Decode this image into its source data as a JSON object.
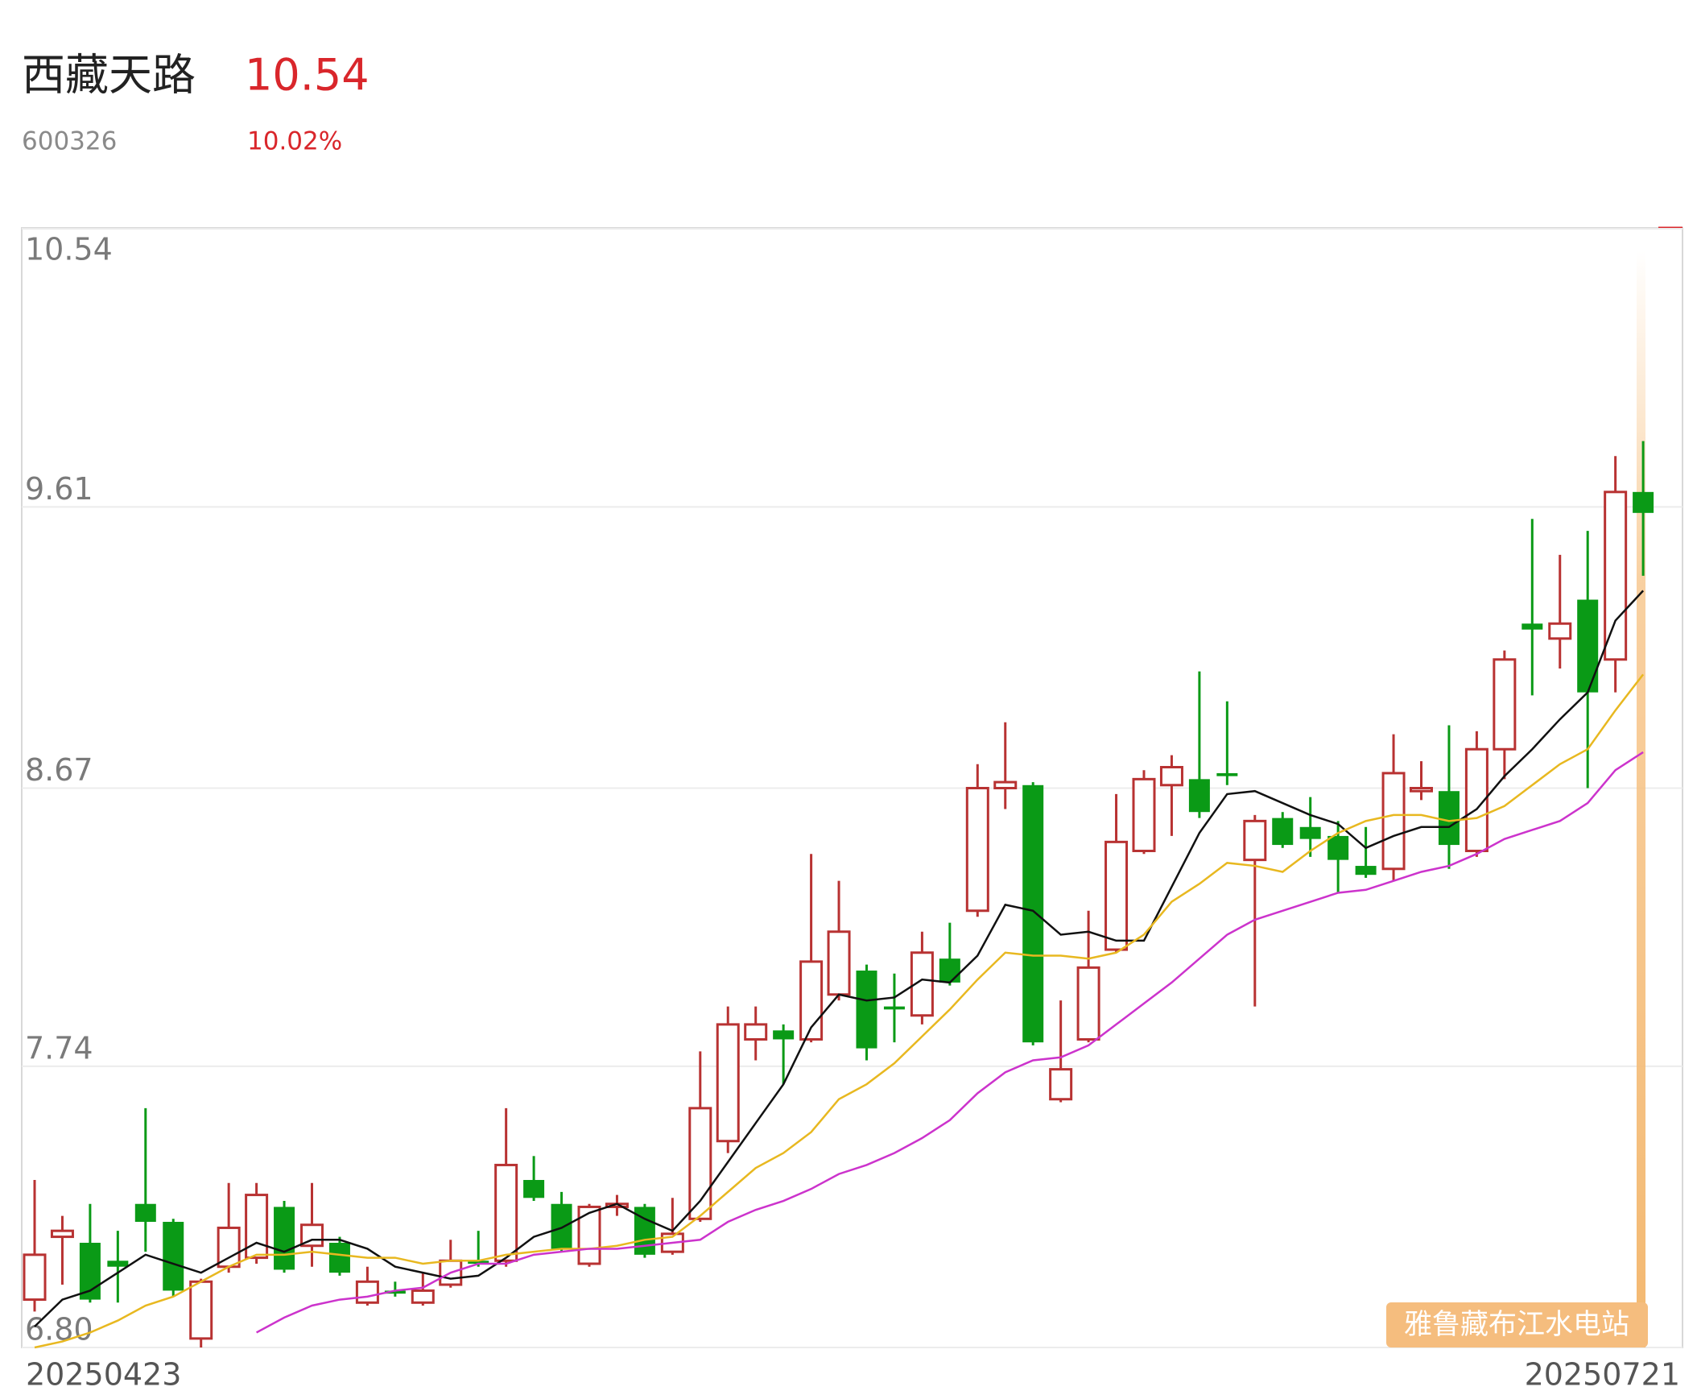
{
  "header": {
    "name": "西藏天路",
    "price": "10.54",
    "code": "600326",
    "change": "10.02%"
  },
  "chart_data": {
    "type": "candlestick",
    "categories": [
      "20250423",
      null,
      null,
      null,
      null,
      null,
      null,
      null,
      null,
      null,
      null,
      null,
      null,
      null,
      null,
      null,
      null,
      null,
      null,
      null,
      null,
      null,
      null,
      null,
      null,
      null,
      null,
      null,
      null,
      null,
      null,
      null,
      null,
      null,
      null,
      null,
      null,
      null,
      null,
      null,
      null,
      null,
      null,
      null,
      null,
      null,
      null,
      null,
      null,
      null,
      null,
      null,
      null,
      null,
      null,
      null,
      null,
      null,
      "20250721"
    ],
    "open": [
      6.96,
      7.17,
      7.15,
      7.09,
      7.28,
      7.22,
      6.83,
      7.07,
      7.1,
      7.27,
      7.14,
      7.15,
      6.95,
      6.99,
      6.95,
      7.01,
      7.09,
      7.09,
      7.36,
      7.28,
      7.08,
      7.27,
      7.27,
      7.12,
      7.23,
      7.49,
      7.83,
      7.86,
      7.83,
      7.98,
      8.06,
      7.94,
      7.91,
      8.1,
      8.26,
      8.67,
      8.68,
      7.63,
      7.83,
      8.13,
      8.46,
      8.68,
      8.7,
      8.72,
      8.43,
      8.57,
      8.54,
      8.51,
      8.41,
      8.4,
      8.66,
      8.66,
      8.46,
      8.8,
      9.22,
      9.17,
      9.3,
      9.1,
      9.66
    ],
    "high": [
      7.36,
      7.24,
      7.28,
      7.19,
      7.6,
      7.23,
      7.03,
      7.35,
      7.35,
      7.29,
      7.35,
      7.17,
      7.07,
      7.02,
      7.05,
      7.16,
      7.19,
      7.6,
      7.44,
      7.32,
      7.28,
      7.31,
      7.28,
      7.3,
      7.79,
      7.94,
      7.94,
      7.88,
      8.45,
      8.36,
      8.08,
      8.05,
      8.19,
      8.22,
      8.75,
      8.89,
      8.69,
      7.96,
      8.26,
      8.65,
      8.73,
      8.78,
      9.06,
      8.96,
      8.58,
      8.59,
      8.64,
      8.56,
      8.54,
      8.85,
      8.76,
      8.88,
      8.86,
      9.13,
      9.57,
      9.45,
      9.53,
      9.78,
      9.83
    ],
    "low": [
      6.92,
      7.01,
      6.95,
      6.95,
      7.12,
      6.97,
      6.8,
      7.05,
      7.08,
      7.05,
      7.07,
      7.04,
      6.94,
      6.97,
      6.94,
      7.0,
      7.07,
      7.07,
      7.29,
      7.12,
      7.07,
      7.24,
      7.1,
      7.11,
      7.22,
      7.45,
      7.76,
      7.68,
      7.82,
      7.96,
      7.76,
      7.82,
      7.88,
      8.01,
      8.24,
      8.6,
      7.81,
      7.62,
      7.82,
      8.12,
      8.45,
      8.51,
      8.57,
      8.68,
      7.94,
      8.47,
      8.44,
      8.32,
      8.37,
      8.36,
      8.63,
      8.4,
      8.44,
      8.7,
      8.98,
      9.07,
      8.67,
      8.99,
      9.38
    ],
    "close": [
      7.11,
      7.19,
      6.96,
      7.07,
      7.22,
      6.99,
      7.02,
      7.2,
      7.31,
      7.06,
      7.21,
      7.05,
      7.02,
      6.98,
      6.99,
      7.09,
      7.08,
      7.41,
      7.3,
      7.13,
      7.27,
      7.28,
      7.11,
      7.18,
      7.6,
      7.88,
      7.88,
      7.83,
      8.09,
      8.19,
      7.8,
      7.93,
      8.12,
      8.02,
      8.67,
      8.69,
      7.82,
      7.73,
      8.07,
      8.49,
      8.7,
      8.74,
      8.59,
      8.71,
      8.56,
      8.48,
      8.5,
      8.43,
      8.38,
      8.72,
      8.67,
      8.48,
      8.8,
      9.1,
      9.2,
      9.22,
      8.99,
      9.66,
      9.59
    ],
    "up_color": "#b83232",
    "down_color": "#0a9a16",
    "ma_lines": [
      {
        "color": "#111111",
        "values": [
          6.87,
          6.96,
          6.99,
          7.05,
          7.11,
          7.08,
          7.05,
          7.1,
          7.15,
          7.12,
          7.16,
          7.16,
          7.13,
          7.07,
          7.05,
          7.03,
          7.04,
          7.1,
          7.17,
          7.2,
          7.25,
          7.28,
          7.23,
          7.19,
          7.29,
          7.42,
          7.55,
          7.68,
          7.87,
          7.98,
          7.96,
          7.97,
          8.03,
          8.02,
          8.11,
          8.28,
          8.26,
          8.18,
          8.19,
          8.16,
          8.16,
          8.34,
          8.52,
          8.65,
          8.66,
          8.62,
          8.58,
          8.55,
          8.47,
          8.51,
          8.54,
          8.54,
          8.6,
          8.71,
          8.8,
          8.9,
          8.99,
          9.23,
          9.33
        ]
      },
      {
        "color": "#e8b820",
        "values": [
          6.8,
          6.82,
          6.85,
          6.89,
          6.94,
          6.97,
          7.02,
          7.07,
          7.11,
          7.11,
          7.12,
          7.11,
          7.1,
          7.1,
          7.08,
          7.09,
          7.09,
          7.11,
          7.12,
          7.13,
          7.13,
          7.14,
          7.16,
          7.17,
          7.24,
          7.32,
          7.4,
          7.45,
          7.52,
          7.63,
          7.68,
          7.75,
          7.84,
          7.93,
          8.03,
          8.12,
          8.11,
          8.11,
          8.1,
          8.12,
          8.18,
          8.29,
          8.35,
          8.42,
          8.41,
          8.39,
          8.46,
          8.52,
          8.56,
          8.58,
          8.58,
          8.56,
          8.57,
          8.61,
          8.68,
          8.75,
          8.8,
          8.93,
          9.05
        ]
      },
      {
        "color": "#cc33cc",
        "values": [
          null,
          null,
          null,
          null,
          null,
          null,
          null,
          null,
          6.85,
          6.9,
          6.94,
          6.96,
          6.97,
          6.99,
          7.0,
          7.05,
          7.08,
          7.08,
          7.11,
          7.12,
          7.13,
          7.13,
          7.14,
          7.15,
          7.16,
          7.22,
          7.26,
          7.29,
          7.33,
          7.38,
          7.41,
          7.45,
          7.5,
          7.56,
          7.65,
          7.72,
          7.76,
          7.77,
          7.81,
          7.88,
          7.95,
          8.02,
          8.1,
          8.18,
          8.23,
          8.26,
          8.29,
          8.32,
          8.33,
          8.36,
          8.39,
          8.41,
          8.45,
          8.5,
          8.53,
          8.56,
          8.62,
          8.73,
          8.79
        ]
      }
    ],
    "ylim": [
      6.8,
      10.54
    ],
    "yticks": [
      {
        "value": 6.8,
        "label": "6.80"
      },
      7.74,
      8.67,
      9.61,
      10.54
    ],
    "grid": true,
    "annotation": "雅鲁藏布江水电站"
  }
}
